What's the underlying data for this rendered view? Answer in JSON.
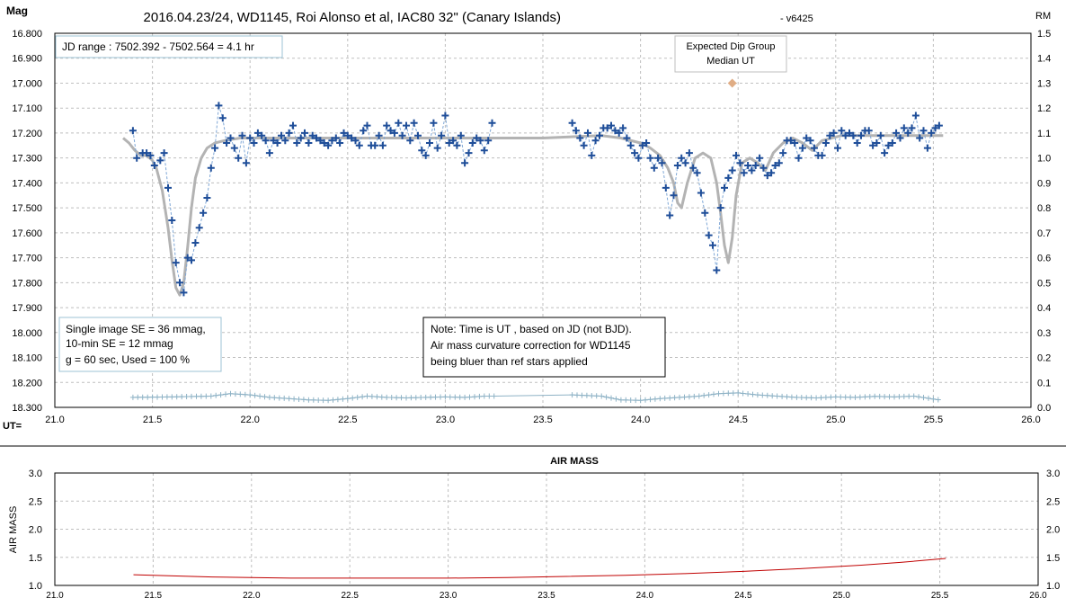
{
  "colors": {
    "marker": "#1f4e99",
    "model": "#b3b3b3",
    "rm": "#8fb3c6",
    "expected": "#e0ad85",
    "airmass": "#c00000",
    "grid": "#bfbfbf"
  },
  "chart_data": [
    {
      "type": "scatter",
      "title": "2016.04.23/24,  WD1145, Roi Alonso et al, IAC80 32\" (Canary Islands)",
      "version_tag": "- v6425",
      "ylabel": "Mag",
      "y2label": "RM",
      "xlabel": "UT=",
      "xlim": [
        21.0,
        26.0
      ],
      "ylim": [
        16.8,
        18.3
      ],
      "y_inverted": true,
      "y2lim": [
        0.0,
        1.5
      ],
      "grid": "on",
      "x_ticks": [
        "21.0",
        "21.5",
        "22.0",
        "22.5",
        "23.0",
        "23.5",
        "24.0",
        "24.5",
        "25.0",
        "25.5",
        "26.0"
      ],
      "y_ticks": [
        "16.800",
        "16.900",
        "17.000",
        "17.100",
        "17.200",
        "17.300",
        "17.400",
        "17.500",
        "17.600",
        "17.700",
        "17.800",
        "17.900",
        "18.000",
        "18.100",
        "18.200",
        "18.300"
      ],
      "y2_ticks": [
        "1.5",
        "1.4",
        "1.3",
        "1.2",
        "1.1",
        "1.0",
        "0.9",
        "0.8",
        "0.7",
        "0.6",
        "0.5",
        "0.4",
        "0.3",
        "0.2",
        "0.1",
        "0.0"
      ],
      "annotations": {
        "jd_range": "JD range  : 7502.392 - 7502.564  = 4.1 hr",
        "expected_dip_line1": "Expected Dip Group",
        "expected_dip_line2": "Median UT",
        "se_line1": "Single image SE = 36 mmag,",
        "se_line2": "10-min SE = 12 mmag",
        "se_line3": "g = 60 sec, Used = 100 %",
        "note_line1": "Note: Time is UT , based on JD (not BJD).",
        "note_line2": "Air mass  curvature correction for WD1145",
        "note_line3": "being bluer  than ref stars applied"
      },
      "expected_dip": {
        "x": 24.47,
        "y": 17.0
      },
      "series": [
        {
          "type": "scatter",
          "x": [
            21.4,
            21.42,
            21.45,
            21.47,
            21.49,
            21.51,
            21.54,
            21.56,
            21.58,
            21.6,
            21.62,
            21.64,
            21.66,
            21.68,
            21.7,
            21.72,
            21.74,
            21.76,
            21.78,
            21.8,
            21.82,
            21.84,
            21.86,
            21.88,
            21.9,
            21.92,
            21.94,
            21.96,
            21.98,
            22.0,
            22.02,
            22.04,
            22.06,
            22.08,
            22.1,
            22.12,
            22.14,
            22.16,
            22.18,
            22.2,
            22.22,
            22.24,
            22.26,
            22.28,
            22.3,
            22.32,
            22.34,
            22.36,
            22.38,
            22.4,
            22.42,
            22.44,
            22.46,
            22.48,
            22.5,
            22.52,
            22.54,
            22.56,
            22.58,
            22.6,
            22.62,
            22.64,
            22.66,
            22.68,
            22.7,
            22.72,
            22.74,
            22.76,
            22.78,
            22.8,
            22.82,
            22.84,
            22.86,
            22.88,
            22.9,
            22.92,
            22.94,
            22.96,
            22.98,
            23.0,
            23.02,
            23.04,
            23.06,
            23.08,
            23.1,
            23.12,
            23.14,
            23.16,
            23.18,
            23.2,
            23.22,
            23.24
          ],
          "y": [
            17.19,
            17.3,
            17.28,
            17.28,
            17.29,
            17.33,
            17.31,
            17.28,
            17.42,
            17.55,
            17.72,
            17.8,
            17.84,
            17.7,
            17.71,
            17.64,
            17.58,
            17.52,
            17.46,
            17.34,
            17.26,
            17.09,
            17.14,
            17.24,
            17.22,
            17.26,
            17.3,
            17.21,
            17.32,
            17.22,
            17.24,
            17.2,
            17.21,
            17.23,
            17.28,
            17.23,
            17.24,
            17.21,
            17.23,
            17.2,
            17.17,
            17.24,
            17.22,
            17.2,
            17.24,
            17.21,
            17.22,
            17.23,
            17.24,
            17.25,
            17.23,
            17.22,
            17.24,
            17.2,
            17.21,
            17.22,
            17.23,
            17.25,
            17.19,
            17.17,
            17.25,
            17.25,
            17.21,
            17.25,
            17.17,
            17.19,
            17.2,
            17.16,
            17.21,
            17.17,
            17.23,
            17.16,
            17.21,
            17.27,
            17.29,
            17.24,
            17.16,
            17.26,
            17.21,
            17.13,
            17.24,
            17.23,
            17.25,
            17.21,
            17.32,
            17.28,
            17.24,
            17.22,
            17.23,
            17.27,
            17.23,
            17.16
          ]
        },
        {
          "type": "scatter",
          "x": [
            23.65,
            23.67,
            23.69,
            23.71,
            23.73,
            23.75,
            23.77,
            23.79,
            23.81,
            23.83,
            23.85,
            23.87,
            23.89,
            23.91,
            23.93,
            23.95,
            23.97,
            23.99,
            24.01,
            24.03,
            24.05,
            24.07,
            24.09,
            24.11,
            24.13,
            24.15,
            24.17,
            24.19,
            24.21,
            24.23,
            24.25,
            24.27,
            24.29,
            24.31,
            24.33,
            24.35,
            24.37,
            24.39,
            24.41,
            24.43,
            24.45,
            24.47,
            24.49,
            24.51,
            24.53,
            24.55,
            24.57,
            24.59,
            24.61,
            24.63,
            24.65,
            24.67,
            24.69,
            24.71,
            24.73,
            24.75,
            24.77,
            24.79,
            24.81,
            24.83,
            24.85,
            24.87,
            24.89,
            24.91,
            24.93,
            24.95,
            24.97,
            24.99,
            25.01,
            25.03,
            25.05,
            25.07,
            25.09,
            25.11,
            25.13,
            25.15,
            25.17,
            25.19,
            25.21,
            25.23,
            25.25,
            25.27,
            25.29,
            25.31,
            25.33,
            25.35,
            25.37,
            25.39,
            25.41,
            25.43,
            25.45,
            25.47,
            25.49,
            25.51,
            25.53
          ],
          "y": [
            17.16,
            17.19,
            17.22,
            17.25,
            17.2,
            17.29,
            17.23,
            17.21,
            17.18,
            17.18,
            17.17,
            17.19,
            17.2,
            17.18,
            17.22,
            17.25,
            17.28,
            17.3,
            17.25,
            17.24,
            17.3,
            17.34,
            17.3,
            17.32,
            17.42,
            17.53,
            17.45,
            17.33,
            17.3,
            17.32,
            17.28,
            17.34,
            17.36,
            17.44,
            17.52,
            17.61,
            17.65,
            17.75,
            17.5,
            17.42,
            17.38,
            17.35,
            17.29,
            17.32,
            17.36,
            17.33,
            17.35,
            17.33,
            17.3,
            17.34,
            17.37,
            17.36,
            17.33,
            17.32,
            17.28,
            17.23,
            17.23,
            17.24,
            17.3,
            17.26,
            17.22,
            17.23,
            17.26,
            17.29,
            17.29,
            17.24,
            17.21,
            17.2,
            17.26,
            17.19,
            17.21,
            17.2,
            17.21,
            17.24,
            17.21,
            17.19,
            17.19,
            17.25,
            17.24,
            17.21,
            17.28,
            17.25,
            17.24,
            17.2,
            17.22,
            17.18,
            17.2,
            17.18,
            17.13,
            17.22,
            17.19,
            17.26,
            17.2,
            17.18,
            17.17
          ]
        },
        {
          "type": "line",
          "x": [
            21.35,
            21.38,
            21.41,
            21.44,
            21.47,
            21.5,
            21.52,
            21.55,
            21.58,
            21.6,
            21.62,
            21.64,
            21.66,
            21.68,
            21.7,
            21.72,
            21.75,
            21.78,
            21.82,
            21.87,
            21.95,
            22.1,
            22.5,
            23.0,
            23.5,
            23.8,
            23.9,
            24.0,
            24.05,
            24.1,
            24.14,
            24.17,
            24.19,
            24.21,
            24.24,
            24.28,
            24.32,
            24.36,
            24.39,
            24.41,
            24.43,
            24.45,
            24.47,
            24.49,
            24.52,
            24.56,
            24.6,
            24.64,
            24.68,
            24.73,
            24.78,
            24.83,
            24.88,
            24.93,
            24.98,
            25.03,
            25.1,
            25.2,
            25.35,
            25.5,
            25.55
          ],
          "y": [
            17.22,
            17.24,
            17.27,
            17.29,
            17.29,
            17.31,
            17.34,
            17.43,
            17.58,
            17.71,
            17.82,
            17.85,
            17.8,
            17.66,
            17.5,
            17.38,
            17.3,
            17.26,
            17.24,
            17.23,
            17.22,
            17.22,
            17.22,
            17.22,
            17.22,
            17.21,
            17.22,
            17.24,
            17.26,
            17.29,
            17.34,
            17.4,
            17.48,
            17.5,
            17.4,
            17.3,
            17.28,
            17.3,
            17.4,
            17.52,
            17.65,
            17.72,
            17.62,
            17.45,
            17.32,
            17.3,
            17.32,
            17.35,
            17.28,
            17.24,
            17.22,
            17.24,
            17.27,
            17.23,
            17.22,
            17.21,
            17.21,
            17.21,
            17.21,
            17.21,
            17.21
          ]
        },
        {
          "type": "line",
          "x": [
            21.4,
            21.6,
            21.8,
            21.9,
            22.0,
            22.1,
            22.2,
            22.3,
            22.4,
            22.5,
            22.6,
            22.7,
            22.8,
            22.9,
            23.0,
            23.1,
            23.2,
            23.25,
            23.65,
            23.8,
            23.9,
            24.0,
            24.1,
            24.2,
            24.3,
            24.4,
            24.5,
            24.6,
            24.7,
            24.8,
            24.9,
            25.0,
            25.1,
            25.2,
            25.3,
            25.4,
            25.53
          ],
          "y": [
            0.04,
            0.042,
            0.045,
            0.055,
            0.05,
            0.04,
            0.035,
            0.03,
            0.028,
            0.035,
            0.045,
            0.04,
            0.038,
            0.04,
            0.042,
            0.04,
            0.045,
            0.045,
            0.05,
            0.045,
            0.03,
            0.028,
            0.035,
            0.04,
            0.045,
            0.055,
            0.058,
            0.05,
            0.045,
            0.04,
            0.038,
            0.042,
            0.04,
            0.044,
            0.042,
            0.045,
            0.03
          ]
        }
      ]
    },
    {
      "type": "line",
      "title": "AIR MASS",
      "ylabel": "AIR MASS",
      "xlim": [
        21.0,
        26.0
      ],
      "ylim": [
        1.0,
        3.0
      ],
      "grid": "on",
      "x_ticks": [
        "21.0",
        "21.5",
        "22.0",
        "22.5",
        "23.0",
        "23.5",
        "24.0",
        "24.5",
        "25.0",
        "25.5",
        "26.0"
      ],
      "y_ticks": [
        "3.0",
        "2.5",
        "2.0",
        "1.5",
        "1.0"
      ],
      "series": [
        {
          "x": [
            21.4,
            21.6,
            21.8,
            22.0,
            22.2,
            22.5,
            22.8,
            23.0,
            23.3,
            23.6,
            23.9,
            24.2,
            24.5,
            24.8,
            25.1,
            25.3,
            25.53
          ],
          "y": [
            1.19,
            1.17,
            1.15,
            1.14,
            1.13,
            1.13,
            1.13,
            1.13,
            1.14,
            1.16,
            1.18,
            1.21,
            1.25,
            1.3,
            1.36,
            1.41,
            1.48
          ]
        }
      ]
    }
  ]
}
